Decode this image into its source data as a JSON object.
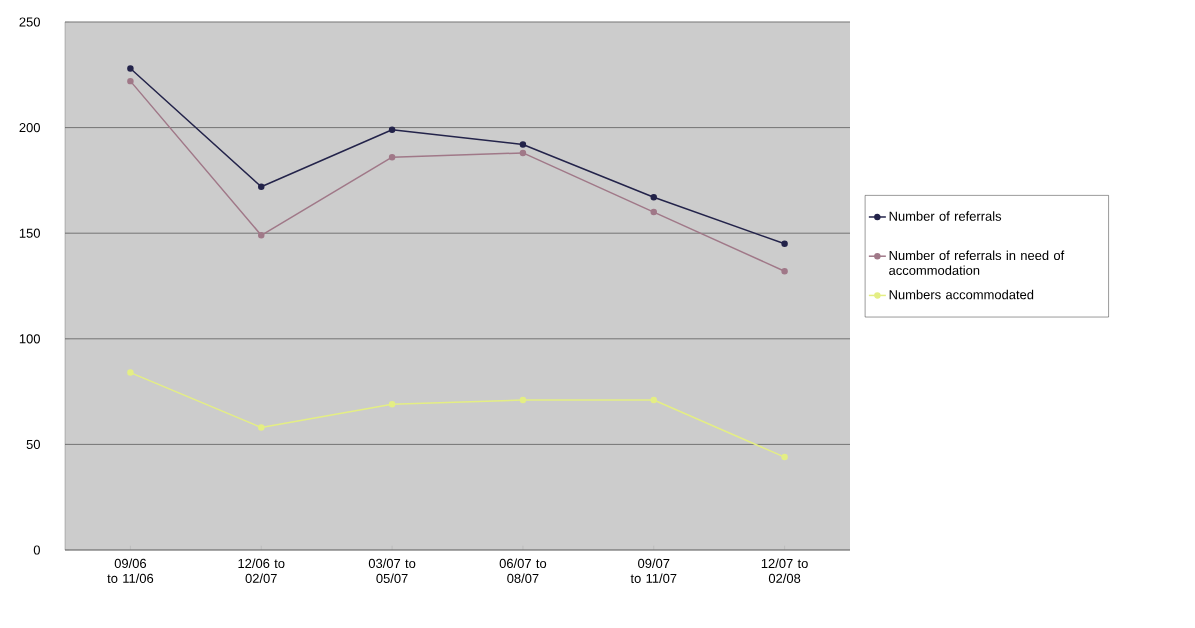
{
  "chart_data": {
    "type": "line",
    "categories": [
      "09/06 to 11/06",
      "12/06 to 02/07",
      "03/07 to 05/07",
      "06/07 to 08/07",
      "09/07 to 11/07",
      "12/07 to 02/08"
    ],
    "series": [
      {
        "name": "Number of referrals",
        "color": "#23234a",
        "values": [
          228,
          172,
          199,
          192,
          167,
          145
        ]
      },
      {
        "name": "Number of referrals in need of accommodation",
        "color": "#a07888",
        "values": [
          222,
          149,
          186,
          188,
          160,
          132
        ]
      },
      {
        "name": "Numbers accommodated",
        "color": "#e4ee84",
        "values": [
          84,
          58,
          69,
          71,
          71,
          44
        ]
      }
    ],
    "ylim": [
      0,
      250
    ],
    "yticks": [
      0,
      50,
      100,
      150,
      200,
      250
    ],
    "grid": "y",
    "legend": "right",
    "marker": "circle"
  }
}
